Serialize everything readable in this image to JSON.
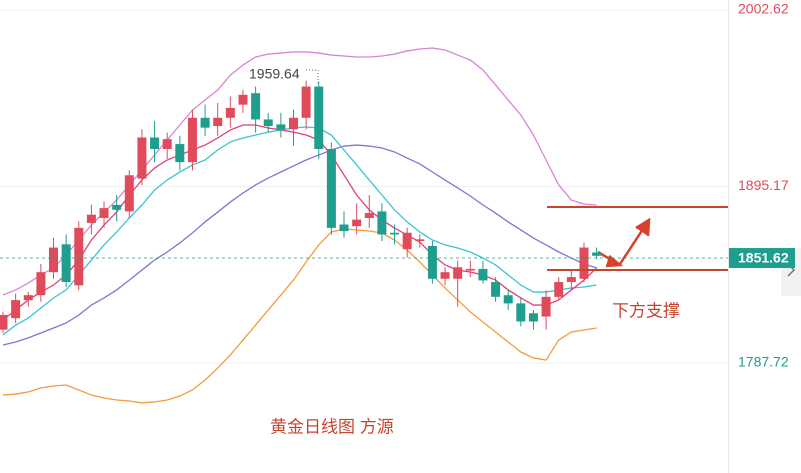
{
  "chart_data": {
    "type": "candlestick",
    "title": "黄金日线图 方源",
    "annotations": [
      {
        "text": "下方支撑",
        "color": "#c8442e"
      },
      {
        "text": "1959.64",
        "color": "#444444"
      }
    ],
    "open": [
      1808,
      1815,
      1826,
      1829,
      1843,
      1860,
      1835,
      1873,
      1876,
      1884,
      1880,
      1900,
      1925,
      1918,
      1921,
      1910,
      1937,
      1932,
      1937,
      1945,
      1952,
      1936,
      1933,
      1930,
      1937,
      1956,
      1918,
      1872,
      1871,
      1876,
      1880,
      1867,
      1857,
      1862,
      1859,
      1839,
      1839,
      1844,
      1845,
      1837,
      1829,
      1824,
      1818,
      1816,
      1828,
      1837,
      1839,
      1855
    ],
    "high": [
      1819,
      1830,
      1831,
      1848,
      1864,
      1866,
      1874,
      1884,
      1886,
      1890,
      1905,
      1930,
      1935,
      1928,
      1926,
      1942,
      1945,
      1946,
      1950,
      1954,
      1956,
      1940,
      1940,
      1942,
      1959.64,
      1959,
      1922,
      1880,
      1885,
      1890,
      1885,
      1872,
      1870,
      1866,
      1862,
      1846,
      1850,
      1850,
      1850,
      1840,
      1832,
      1828,
      1820,
      1832,
      1840,
      1844,
      1861,
      1858
    ],
    "low": [
      1806,
      1812,
      1822,
      1825,
      1839,
      1834,
      1832,
      1866,
      1870,
      1874,
      1876,
      1896,
      1910,
      1912,
      1905,
      1905,
      1926,
      1926,
      1931,
      1940,
      1928,
      1928,
      1925,
      1920,
      1930,
      1912,
      1866,
      1864,
      1866,
      1870,
      1862,
      1860,
      1852,
      1858,
      1836,
      1835,
      1822,
      1840,
      1836,
      1825,
      1820,
      1810,
      1808,
      1808,
      1826,
      1832,
      1837,
      1851
    ],
    "close": [
      1817,
      1826,
      1829,
      1843,
      1858,
      1837,
      1870,
      1878,
      1882,
      1881,
      1902,
      1925,
      1918,
      1924,
      1910,
      1937,
      1931,
      1937,
      1943,
      1951,
      1936,
      1932,
      1930,
      1937,
      1956,
      1918,
      1870,
      1868,
      1875,
      1879,
      1866,
      1866,
      1867,
      1863,
      1839,
      1843,
      1846,
      1845,
      1838,
      1828,
      1824,
      1813,
      1813,
      1828,
      1837,
      1840,
      1858,
      1853
    ],
    "up_color": "#e04b5b",
    "down_color": "#1f9e8e",
    "series": [
      {
        "color": "#d884d8",
        "values": [
          1829.1,
          1832.2,
          1836.4,
          1841.3,
          1845.6,
          1853.5,
          1862.6,
          1871.7,
          1879.6,
          1886.9,
          1896.1,
          1905.2,
          1914.3,
          1923.5,
          1932.6,
          1941.7,
          1947.8,
          1953.9,
          1963.0,
          1969.1,
          1974.0,
          1975.8,
          1976.4,
          1977.1,
          1977.1,
          1976.4,
          1975.2,
          1974.6,
          1974.0,
          1974.0,
          1974.6,
          1975.8,
          1977.7,
          1978.9,
          1979.5,
          1978.3,
          1975.2,
          1972.2,
          1966.1,
          1957.0,
          1947.8,
          1938.7,
          1926.5,
          1911.3,
          1896.1,
          1886.9,
          1884.5,
          1883.9
        ]
      },
      {
        "color": "#f39c3a",
        "values": [
          1768.2,
          1768.8,
          1770.1,
          1772.5,
          1773.7,
          1774.3,
          1771.3,
          1768.2,
          1766.4,
          1765.2,
          1764.6,
          1763.4,
          1764.0,
          1765.2,
          1767.6,
          1771.3,
          1777.4,
          1784.7,
          1792.6,
          1801.7,
          1810.8,
          1820.0,
          1829.1,
          1838.2,
          1849.2,
          1859.6,
          1867.5,
          1869.3,
          1868.7,
          1868.1,
          1866.9,
          1862.6,
          1856.5,
          1849.2,
          1841.3,
          1833.4,
          1826.1,
          1818.8,
          1812.7,
          1806.6,
          1800.5,
          1794.4,
          1790.8,
          1789.5,
          1801.7,
          1806.6,
          1807.8,
          1809.0
        ]
      },
      {
        "color": "#8a6fd6",
        "values": [
          1798.7,
          1800.5,
          1803.0,
          1806.0,
          1809.0,
          1812.1,
          1816.9,
          1823.0,
          1827.3,
          1832.2,
          1838.2,
          1844.3,
          1850.4,
          1855.3,
          1860.8,
          1866.9,
          1873.6,
          1879.6,
          1885.7,
          1891.2,
          1896.1,
          1900.3,
          1904.0,
          1907.7,
          1911.3,
          1914.3,
          1917.4,
          1919.8,
          1920.4,
          1919.8,
          1918.6,
          1916.2,
          1912.5,
          1908.9,
          1904.0,
          1899.1,
          1894.3,
          1889.4,
          1883.9,
          1879.0,
          1873.6,
          1868.7,
          1863.8,
          1859.6,
          1855.3,
          1851.6,
          1848.0,
          1845.6
        ]
      },
      {
        "color": "#3cc3d2",
        "values": [
          1804.8,
          1810.8,
          1815.1,
          1821.2,
          1827.3,
          1832.2,
          1841.3,
          1850.4,
          1859.6,
          1867.5,
          1876.0,
          1883.9,
          1893.0,
          1899.1,
          1904.0,
          1908.3,
          1911.3,
          1917.4,
          1922.3,
          1924.7,
          1926.5,
          1928.3,
          1929.6,
          1930.8,
          1931.4,
          1930.8,
          1926.5,
          1917.4,
          1908.3,
          1899.1,
          1890.0,
          1880.9,
          1873.6,
          1867.5,
          1862.6,
          1859.6,
          1857.7,
          1855.3,
          1851.6,
          1847.4,
          1841.3,
          1835.2,
          1830.9,
          1830.9,
          1832.2,
          1833.4,
          1834.0,
          1835.2
        ]
      },
      {
        "color": "#e0407a",
        "values": [
          1813.9,
          1820.0,
          1826.1,
          1830.9,
          1835.2,
          1841.3,
          1850.4,
          1862.6,
          1871.7,
          1879.6,
          1890.0,
          1899.1,
          1906.4,
          1911.3,
          1914.3,
          1917.4,
          1920.4,
          1924.7,
          1929.6,
          1932.6,
          1932.6,
          1930.8,
          1929.6,
          1928.3,
          1926.5,
          1923.5,
          1914.3,
          1902.2,
          1890.0,
          1880.9,
          1874.8,
          1869.9,
          1865.6,
          1861.4,
          1853.5,
          1847.4,
          1844.3,
          1843.1,
          1841.3,
          1838.2,
          1832.2,
          1827.3,
          1823.0,
          1823.0,
          1826.1,
          1832.2,
          1838.2,
          1845.6
        ]
      }
    ],
    "levels": [
      1882.7,
      1844.3
    ],
    "level_color": "#c8442e",
    "last_price": 1851.62,
    "last_price_color": "#1f9e8e",
    "ylim": [
      1720.75,
      2008.71
    ],
    "yticks": [
      2002.62,
      1895.17,
      1787.72
    ],
    "grid": true
  }
}
